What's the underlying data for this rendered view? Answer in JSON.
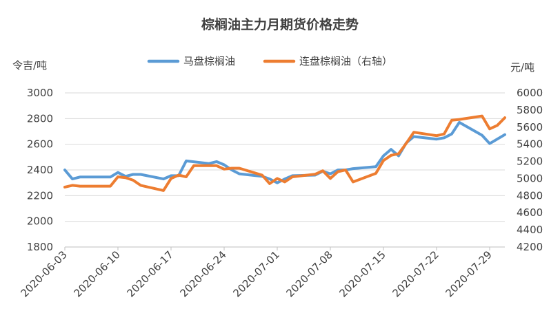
{
  "chart_data": {
    "type": "line",
    "title": "棕榈油主力月期货价格走势",
    "left_unit": "令吉/吨",
    "right_unit": "元/吨",
    "legend_position": "top",
    "grid": true,
    "x_tick_labels": [
      "2020-06-03",
      "2020-06-10",
      "2020-06-17",
      "2020-06-24",
      "2020-07-01",
      "2020-07-08",
      "2020-07-15",
      "2020-07-22",
      "2020-07-29"
    ],
    "x_range": [
      "2020-06-03",
      "2020-07-31"
    ],
    "y_left": {
      "min": 1800,
      "max": 3000,
      "step": 200,
      "ticks": [
        "1800",
        "2000",
        "2200",
        "2400",
        "2600",
        "2800",
        "3000"
      ]
    },
    "y_right": {
      "min": 4200,
      "max": 6000,
      "step": 200,
      "ticks": [
        "4200",
        "4400",
        "4600",
        "4800",
        "5000",
        "5200",
        "5400",
        "5600",
        "5800",
        "6000"
      ]
    },
    "series": [
      {
        "name": "马盘棕榈油",
        "axis": "left",
        "color": "#5B9BD5",
        "points": [
          [
            "2020-06-03",
            2400
          ],
          [
            "2020-06-04",
            2330
          ],
          [
            "2020-06-05",
            2345
          ],
          [
            "2020-06-08",
            2345
          ],
          [
            "2020-06-09",
            2345
          ],
          [
            "2020-06-10",
            2380
          ],
          [
            "2020-06-11",
            2350
          ],
          [
            "2020-06-12",
            2365
          ],
          [
            "2020-06-13",
            2365
          ],
          [
            "2020-06-16",
            2330
          ],
          [
            "2020-06-17",
            2355
          ],
          [
            "2020-06-18",
            2355
          ],
          [
            "2020-06-19",
            2470
          ],
          [
            "2020-06-22",
            2450
          ],
          [
            "2020-06-23",
            2465
          ],
          [
            "2020-06-24",
            2440
          ],
          [
            "2020-06-25",
            2400
          ],
          [
            "2020-06-26",
            2370
          ],
          [
            "2020-06-29",
            2350
          ],
          [
            "2020-06-30",
            2330
          ],
          [
            "2020-07-01",
            2300
          ],
          [
            "2020-07-02",
            2330
          ],
          [
            "2020-07-03",
            2355
          ],
          [
            "2020-07-06",
            2360
          ],
          [
            "2020-07-07",
            2390
          ],
          [
            "2020-07-08",
            2370
          ],
          [
            "2020-07-09",
            2400
          ],
          [
            "2020-07-10",
            2400
          ],
          [
            "2020-07-11",
            2410
          ],
          [
            "2020-07-14",
            2425
          ],
          [
            "2020-07-15",
            2510
          ],
          [
            "2020-07-16",
            2560
          ],
          [
            "2020-07-17",
            2510
          ],
          [
            "2020-07-18",
            2610
          ],
          [
            "2020-07-19",
            2660
          ],
          [
            "2020-07-22",
            2640
          ],
          [
            "2020-07-23",
            2650
          ],
          [
            "2020-07-24",
            2680
          ],
          [
            "2020-07-25",
            2770
          ],
          [
            "2020-07-28",
            2670
          ],
          [
            "2020-07-29",
            2605
          ],
          [
            "2020-07-30",
            2640
          ],
          [
            "2020-07-31",
            2675
          ]
        ]
      },
      {
        "name": "连盘棕榈油（右轴）",
        "axis": "right",
        "color": "#ED7D31",
        "points": [
          [
            "2020-06-03",
            4900
          ],
          [
            "2020-06-04",
            4920
          ],
          [
            "2020-06-05",
            4910
          ],
          [
            "2020-06-08",
            4910
          ],
          [
            "2020-06-09",
            4910
          ],
          [
            "2020-06-10",
            5020
          ],
          [
            "2020-06-11",
            5010
          ],
          [
            "2020-06-12",
            4980
          ],
          [
            "2020-06-13",
            4920
          ],
          [
            "2020-06-16",
            4860
          ],
          [
            "2020-06-17",
            5000
          ],
          [
            "2020-06-18",
            5040
          ],
          [
            "2020-06-19",
            5020
          ],
          [
            "2020-06-20",
            5150
          ],
          [
            "2020-06-23",
            5150
          ],
          [
            "2020-06-24",
            5110
          ],
          [
            "2020-06-25",
            5120
          ],
          [
            "2020-06-26",
            5120
          ],
          [
            "2020-06-29",
            5040
          ],
          [
            "2020-06-30",
            4940
          ],
          [
            "2020-07-01",
            5000
          ],
          [
            "2020-07-02",
            4960
          ],
          [
            "2020-07-03",
            5020
          ],
          [
            "2020-07-06",
            5050
          ],
          [
            "2020-07-07",
            5090
          ],
          [
            "2020-07-08",
            5000
          ],
          [
            "2020-07-09",
            5080
          ],
          [
            "2020-07-10",
            5100
          ],
          [
            "2020-07-11",
            4960
          ],
          [
            "2020-07-14",
            5060
          ],
          [
            "2020-07-15",
            5210
          ],
          [
            "2020-07-16",
            5270
          ],
          [
            "2020-07-17",
            5290
          ],
          [
            "2020-07-18",
            5410
          ],
          [
            "2020-07-19",
            5540
          ],
          [
            "2020-07-22",
            5500
          ],
          [
            "2020-07-23",
            5520
          ],
          [
            "2020-07-24",
            5680
          ],
          [
            "2020-07-25",
            5690
          ],
          [
            "2020-07-28",
            5730
          ],
          [
            "2020-07-29",
            5580
          ],
          [
            "2020-07-30",
            5620
          ],
          [
            "2020-07-31",
            5710
          ]
        ]
      }
    ]
  }
}
